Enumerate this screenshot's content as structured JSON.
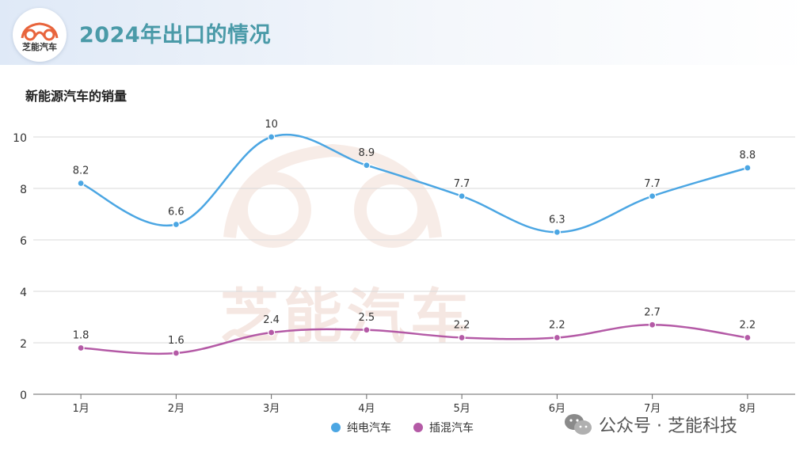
{
  "header": {
    "title": "2024年出口的情况",
    "logo_text": "芝能汽车"
  },
  "watermark": {
    "center_text": "芝能汽车",
    "footer_text": "公众号 · 芝能科技"
  },
  "colors": {
    "bev": "#4ba6e3",
    "phev": "#b45aa6",
    "title": "#4a9aa8"
  },
  "chart_data": {
    "type": "line",
    "title": "新能源汽车的销量",
    "categories": [
      "1月",
      "2月",
      "3月",
      "4月",
      "5月",
      "6月",
      "7月",
      "8月"
    ],
    "series": [
      {
        "name": "纯电汽车",
        "values": [
          8.2,
          6.6,
          10,
          8.9,
          7.7,
          6.3,
          7.7,
          8.8
        ]
      },
      {
        "name": "插混汽车",
        "values": [
          1.8,
          1.6,
          2.4,
          2.5,
          2.2,
          2.2,
          2.7,
          2.2
        ]
      }
    ],
    "ylim": [
      0,
      10
    ],
    "yticks": [
      0,
      2,
      4,
      6,
      8,
      10
    ],
    "grid": true,
    "legend_position": "bottom-center"
  }
}
